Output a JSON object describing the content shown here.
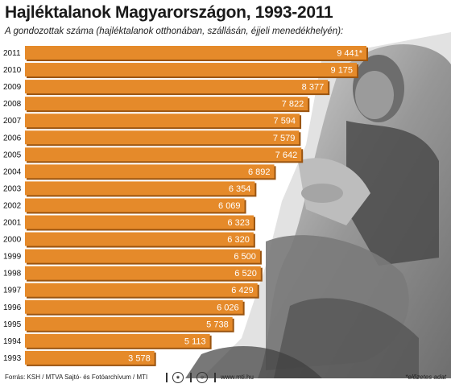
{
  "title": "Hajléktalanok Magyarországon, 1993-2011",
  "subtitle": "A gondozottak száma (hajléktalanok otthonában, szállásán, éjjeli menedékhelyén):",
  "footer": {
    "source": "Forrás: KSH / MTVA Sajtó- és Fotóarchívum / MTI",
    "website": "www.mti.hu",
    "note": "*előzetes adat",
    "logo1_icon": "mtva-logo-icon",
    "logo2_icon": "mti-logo-icon"
  },
  "colors": {
    "bar": "#e58a2a",
    "bar_shadow": "#9a5410",
    "label": "#ffffff"
  },
  "chart_data": {
    "type": "bar",
    "orientation": "horizontal",
    "title": "Hajléktalanok Magyarországon, 1993-2011",
    "subtitle": "A gondozottak száma (hajléktalanok otthonában, szállásán, éjjeli menedékhelyén):",
    "categories": [
      "2011",
      "2010",
      "2009",
      "2008",
      "2007",
      "2006",
      "2005",
      "2004",
      "2003",
      "2002",
      "2001",
      "2000",
      "1999",
      "1998",
      "1997",
      "1996",
      "1995",
      "1994",
      "1993"
    ],
    "values": [
      9441,
      9175,
      8377,
      7822,
      7594,
      7579,
      7642,
      6892,
      6354,
      6069,
      6323,
      6320,
      6500,
      6520,
      6429,
      6026,
      5738,
      5113,
      3578
    ],
    "value_labels": [
      "9 441*",
      "9 175",
      "8 377",
      "7 822",
      "7 594",
      "7 579",
      "7 642",
      "6 892",
      "6 354",
      "6 069",
      "6 323",
      "6 320",
      "6 500",
      "6 520",
      "6 429",
      "6 026",
      "5 738",
      "5 113",
      "3 578"
    ],
    "xlim": [
      0,
      9441
    ],
    "grid": false,
    "legend": "none"
  }
}
